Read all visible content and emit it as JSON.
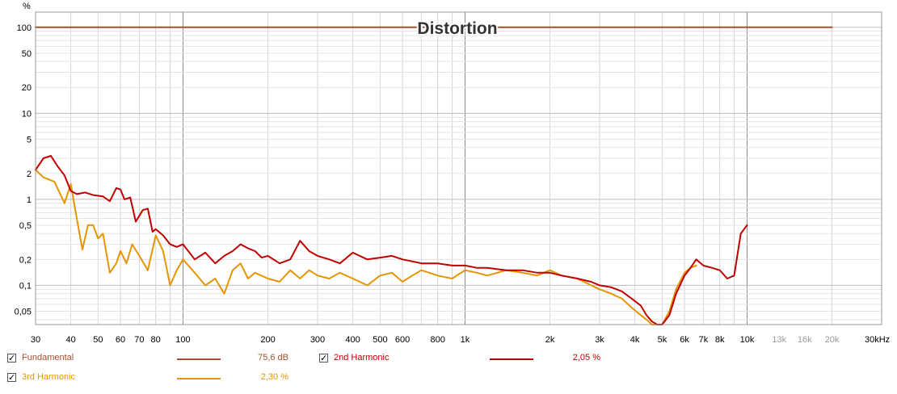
{
  "chart_data": {
    "type": "line",
    "title": "Distortion",
    "y_unit_label": "%",
    "x_unit_label": "30kHz",
    "x_scale": "log",
    "y_scale": "log",
    "xlim": [
      30,
      30000
    ],
    "ylim": [
      0.035,
      150
    ],
    "grid": true,
    "x_tick_labels": [
      {
        "v": 30,
        "t": "30"
      },
      {
        "v": 40,
        "t": "40"
      },
      {
        "v": 50,
        "t": "50"
      },
      {
        "v": 60,
        "t": "60"
      },
      {
        "v": 70,
        "t": "70"
      },
      {
        "v": 80,
        "t": "80"
      },
      {
        "v": 100,
        "t": "100"
      },
      {
        "v": 200,
        "t": "200"
      },
      {
        "v": 300,
        "t": "300"
      },
      {
        "v": 400,
        "t": "400"
      },
      {
        "v": 500,
        "t": "500"
      },
      {
        "v": 600,
        "t": "600"
      },
      {
        "v": 800,
        "t": "800"
      },
      {
        "v": 1000,
        "t": "1k"
      },
      {
        "v": 2000,
        "t": "2k"
      },
      {
        "v": 3000,
        "t": "3k"
      },
      {
        "v": 4000,
        "t": "4k"
      },
      {
        "v": 5000,
        "t": "5k"
      },
      {
        "v": 6000,
        "t": "6k"
      },
      {
        "v": 7000,
        "t": "7k"
      },
      {
        "v": 8000,
        "t": "8k"
      },
      {
        "v": 10000,
        "t": "10k"
      },
      {
        "v": 13000,
        "t": "13k"
      },
      {
        "v": 16000,
        "t": "16k"
      },
      {
        "v": 20000,
        "t": "20k"
      }
    ],
    "y_tick_labels": [
      {
        "v": 100,
        "t": "100"
      },
      {
        "v": 50,
        "t": "50"
      },
      {
        "v": 20,
        "t": "20"
      },
      {
        "v": 10,
        "t": "10"
      },
      {
        "v": 5,
        "t": "5"
      },
      {
        "v": 2,
        "t": "2"
      },
      {
        "v": 1,
        "t": "1"
      },
      {
        "v": 0.5,
        "t": "0,5"
      },
      {
        "v": 0.2,
        "t": "0,2"
      },
      {
        "v": 0.1,
        "t": "0,1"
      },
      {
        "v": 0.05,
        "t": "0,05"
      }
    ],
    "series": [
      {
        "name": "Fundamental",
        "color": "#a0522d",
        "legend_value": "75,6 dB",
        "x": [
          30,
          20000
        ],
        "y": [
          100,
          100
        ]
      },
      {
        "name": "2nd Harmonic",
        "color": "#c00000",
        "legend_value": "2,05 %",
        "x": [
          30,
          32,
          34,
          36,
          38,
          40,
          42,
          45,
          48,
          52,
          55,
          58,
          60,
          62,
          65,
          68,
          72,
          75,
          78,
          80,
          85,
          90,
          95,
          100,
          110,
          120,
          130,
          140,
          150,
          160,
          170,
          180,
          190,
          200,
          220,
          240,
          260,
          280,
          300,
          330,
          360,
          400,
          450,
          500,
          550,
          600,
          650,
          700,
          800,
          900,
          1000,
          1100,
          1200,
          1400,
          1600,
          1800,
          2000,
          2200,
          2500,
          2800,
          3000,
          3300,
          3600,
          3900,
          4200,
          4400,
          4600,
          4800,
          5000,
          5300,
          5600,
          6000,
          6300,
          6600,
          7000,
          7500,
          8000,
          8500,
          9000,
          9500,
          10000
        ],
        "y": [
          2.2,
          3.0,
          3.2,
          2.4,
          1.9,
          1.25,
          1.15,
          1.2,
          1.12,
          1.08,
          0.95,
          1.35,
          1.3,
          1.0,
          1.05,
          0.55,
          0.75,
          0.78,
          0.42,
          0.45,
          0.38,
          0.3,
          0.28,
          0.3,
          0.2,
          0.24,
          0.18,
          0.22,
          0.25,
          0.3,
          0.27,
          0.25,
          0.21,
          0.22,
          0.18,
          0.2,
          0.33,
          0.25,
          0.22,
          0.2,
          0.18,
          0.24,
          0.2,
          0.21,
          0.22,
          0.2,
          0.19,
          0.18,
          0.18,
          0.17,
          0.17,
          0.16,
          0.16,
          0.15,
          0.15,
          0.14,
          0.14,
          0.13,
          0.12,
          0.11,
          0.1,
          0.095,
          0.085,
          0.07,
          0.058,
          0.045,
          0.038,
          0.035,
          0.035,
          0.045,
          0.08,
          0.13,
          0.16,
          0.2,
          0.17,
          0.16,
          0.15,
          0.12,
          0.13,
          0.4,
          0.5
        ]
      },
      {
        "name": "3rd Harmonic",
        "color": "#e69500",
        "legend_value": "2,30 %",
        "x": [
          30,
          32,
          35,
          38,
          40,
          42,
          44,
          46,
          48,
          50,
          52,
          55,
          58,
          60,
          63,
          66,
          70,
          75,
          80,
          85,
          90,
          95,
          100,
          110,
          120,
          130,
          140,
          150,
          160,
          170,
          180,
          200,
          220,
          240,
          260,
          280,
          300,
          330,
          360,
          400,
          450,
          500,
          550,
          600,
          650,
          700,
          800,
          900,
          1000,
          1100,
          1200,
          1400,
          1600,
          1800,
          2000,
          2200,
          2500,
          2800,
          3000,
          3300,
          3600,
          3900,
          4200,
          4400,
          4600,
          4800,
          5000,
          5300,
          5600,
          6000,
          6300,
          6600
        ],
        "y": [
          2.2,
          1.8,
          1.6,
          0.9,
          1.5,
          0.6,
          0.26,
          0.5,
          0.5,
          0.35,
          0.4,
          0.14,
          0.18,
          0.25,
          0.18,
          0.3,
          0.22,
          0.15,
          0.38,
          0.25,
          0.1,
          0.15,
          0.2,
          0.14,
          0.1,
          0.12,
          0.08,
          0.15,
          0.18,
          0.12,
          0.14,
          0.12,
          0.11,
          0.15,
          0.12,
          0.15,
          0.13,
          0.12,
          0.14,
          0.12,
          0.1,
          0.13,
          0.14,
          0.11,
          0.13,
          0.15,
          0.13,
          0.12,
          0.15,
          0.14,
          0.13,
          0.15,
          0.14,
          0.13,
          0.15,
          0.13,
          0.12,
          0.1,
          0.09,
          0.08,
          0.07,
          0.055,
          0.045,
          0.04,
          0.035,
          0.035,
          0.035,
          0.05,
          0.09,
          0.14,
          0.16,
          0.17
        ]
      }
    ]
  }
}
